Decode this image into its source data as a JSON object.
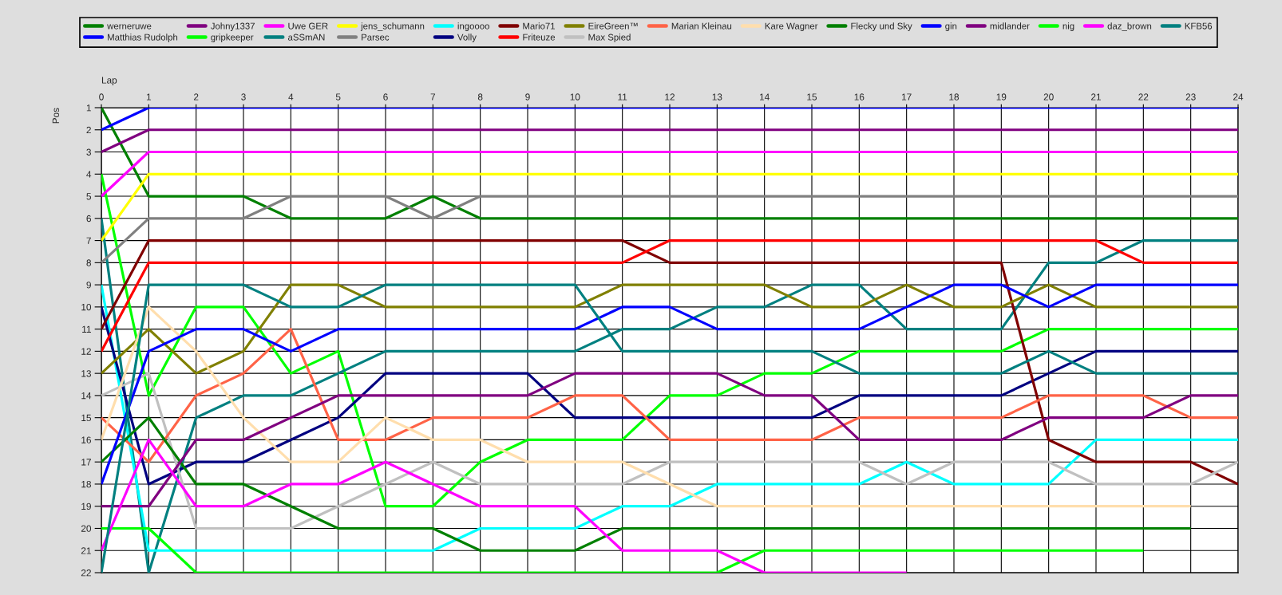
{
  "chart_data": {
    "type": "line",
    "xlabel": "Lap",
    "ylabel": "Pos",
    "grid": true,
    "legend": "top",
    "x": [
      0,
      1,
      2,
      3,
      4,
      5,
      6,
      7,
      8,
      9,
      10,
      11,
      12,
      13,
      14,
      15,
      16,
      17,
      18,
      19,
      20,
      21,
      22,
      23,
      24
    ],
    "xlim": [
      0,
      24
    ],
    "xticks": [
      0,
      1,
      2,
      3,
      4,
      5,
      6,
      7,
      8,
      9,
      10,
      11,
      12,
      13,
      14,
      15,
      16,
      17,
      18,
      19,
      20,
      21,
      22,
      23,
      24
    ],
    "ylim": [
      22,
      1
    ],
    "yticks": [
      1,
      2,
      3,
      4,
      5,
      6,
      7,
      8,
      9,
      10,
      11,
      12,
      13,
      14,
      15,
      16,
      17,
      18,
      19,
      20,
      21,
      22
    ],
    "series": [
      {
        "name": "werneruwe",
        "color": "#008000",
        "values": [
          1,
          5,
          5,
          5,
          6,
          6,
          6,
          5,
          6,
          6,
          6,
          6,
          6,
          6,
          6,
          6,
          6,
          6,
          6,
          6,
          6,
          6,
          6,
          6,
          6
        ]
      },
      {
        "name": "Matthias Rudolph",
        "color": "#0000ff",
        "values": [
          2,
          1,
          1,
          1,
          1,
          1,
          1,
          1,
          1,
          1,
          1,
          1,
          1,
          1,
          1,
          1,
          1,
          1,
          1,
          1,
          1,
          1,
          1,
          1,
          1
        ]
      },
      {
        "name": "Johny1337",
        "color": "#800080",
        "values": [
          3,
          2,
          2,
          2,
          2,
          2,
          2,
          2,
          2,
          2,
          2,
          2,
          2,
          2,
          2,
          2,
          2,
          2,
          2,
          2,
          2,
          2,
          2,
          2,
          2
        ]
      },
      {
        "name": "gripkeeper",
        "color": "#00ff00",
        "values": [
          4,
          14,
          10,
          10,
          13,
          12,
          19,
          19,
          17,
          16,
          16,
          16,
          14,
          14,
          13,
          13,
          12,
          12,
          12,
          12,
          11,
          11,
          11,
          11,
          11
        ]
      },
      {
        "name": "Uwe GER",
        "color": "#ff00ff",
        "values": [
          5,
          3,
          3,
          3,
          3,
          3,
          3,
          3,
          3,
          3,
          3,
          3,
          3,
          3,
          3,
          3,
          3,
          3,
          3,
          3,
          3,
          3,
          3,
          3,
          3
        ]
      },
      {
        "name": "aSSmAN",
        "color": "#008080",
        "values": [
          6,
          22,
          15,
          14,
          14,
          13,
          12,
          12,
          12,
          12,
          12,
          11,
          11,
          10,
          10,
          9,
          9,
          11,
          11,
          11,
          8,
          8,
          7,
          7,
          7
        ]
      },
      {
        "name": "jens_schumann",
        "color": "#ffff00",
        "values": [
          7,
          4,
          4,
          4,
          4,
          4,
          4,
          4,
          4,
          4,
          4,
          4,
          4,
          4,
          4,
          4,
          4,
          4,
          4,
          4,
          4,
          4,
          4,
          4,
          4
        ]
      },
      {
        "name": "Parsec",
        "color": "#808080",
        "values": [
          8,
          6,
          6,
          6,
          5,
          5,
          5,
          6,
          5,
          5,
          5,
          5,
          5,
          5,
          5,
          5,
          5,
          5,
          5,
          5,
          5,
          5,
          5,
          5,
          5
        ]
      },
      {
        "name": "ingoooo",
        "color": "#00ffff",
        "values": [
          9,
          21,
          21,
          21,
          21,
          21,
          21,
          21,
          20,
          20,
          20,
          19,
          19,
          18,
          18,
          18,
          18,
          17,
          18,
          18,
          18,
          16,
          16,
          16,
          16
        ]
      },
      {
        "name": "Volly",
        "color": "#000080",
        "values": [
          10,
          18,
          17,
          17,
          16,
          15,
          13,
          13,
          13,
          13,
          15,
          15,
          15,
          15,
          15,
          15,
          14,
          14,
          14,
          14,
          13,
          12,
          12,
          12,
          12
        ]
      },
      {
        "name": "Mario71",
        "color": "#800000",
        "values": [
          11,
          7,
          7,
          7,
          7,
          7,
          7,
          7,
          7,
          7,
          7,
          7,
          8,
          8,
          8,
          8,
          8,
          8,
          8,
          8,
          16,
          17,
          17,
          17,
          18
        ]
      },
      {
        "name": "Friteuze",
        "color": "#ff0000",
        "values": [
          12,
          8,
          8,
          8,
          8,
          8,
          8,
          8,
          8,
          8,
          8,
          8,
          7,
          7,
          7,
          7,
          7,
          7,
          7,
          7,
          7,
          7,
          8,
          8,
          8
        ]
      },
      {
        "name": "EireGreen™",
        "color": "#808000",
        "values": [
          13,
          11,
          13,
          12,
          9,
          9,
          10,
          10,
          10,
          10,
          10,
          9,
          9,
          9,
          9,
          10,
          10,
          9,
          10,
          10,
          9,
          10,
          10,
          10,
          10
        ]
      },
      {
        "name": "Max Spied",
        "color": "#c0c0c0",
        "values": [
          14,
          13,
          20,
          20,
          20,
          19,
          18,
          17,
          18,
          18,
          18,
          18,
          17,
          17,
          17,
          17,
          17,
          18,
          17,
          17,
          17,
          18,
          18,
          18,
          17
        ]
      },
      {
        "name": "Marian Kleinau",
        "color": "#ff6347",
        "values": [
          15,
          17,
          14,
          13,
          11,
          16,
          16,
          15,
          15,
          15,
          14,
          14,
          16,
          16,
          16,
          16,
          15,
          15,
          15,
          15,
          14,
          14,
          14,
          15,
          15
        ]
      },
      {
        "name": "Kare Wagner",
        "color": "#ffdead",
        "values": [
          16,
          10,
          12,
          15,
          17,
          17,
          15,
          16,
          16,
          17,
          17,
          17,
          18,
          19,
          19,
          19,
          19,
          19,
          19,
          19,
          19,
          19,
          19,
          19,
          null
        ]
      },
      {
        "name": "Flecky und Sky",
        "color": "#008000",
        "values": [
          17,
          15,
          18,
          18,
          19,
          20,
          20,
          20,
          21,
          21,
          21,
          20,
          20,
          20,
          20,
          20,
          20,
          20,
          20,
          20,
          20,
          20,
          20,
          20,
          null
        ]
      },
      {
        "name": "gin",
        "color": "#0000ff",
        "values": [
          18,
          12,
          11,
          11,
          12,
          11,
          11,
          11,
          11,
          11,
          11,
          10,
          10,
          11,
          11,
          11,
          11,
          10,
          9,
          9,
          10,
          9,
          9,
          9,
          9
        ]
      },
      {
        "name": "midlander",
        "color": "#800080",
        "values": [
          19,
          19,
          16,
          16,
          15,
          14,
          14,
          14,
          14,
          14,
          13,
          13,
          13,
          13,
          14,
          14,
          16,
          16,
          16,
          16,
          15,
          15,
          15,
          14,
          14
        ]
      },
      {
        "name": "nig",
        "color": "#00ff00",
        "values": [
          20,
          20,
          22,
          22,
          22,
          22,
          22,
          22,
          22,
          22,
          22,
          22,
          22,
          22,
          21,
          21,
          21,
          21,
          21,
          21,
          21,
          21,
          21,
          null,
          null
        ]
      },
      {
        "name": "daz_brown",
        "color": "#ff00ff",
        "values": [
          21,
          16,
          19,
          19,
          18,
          18,
          17,
          18,
          19,
          19,
          19,
          21,
          21,
          21,
          22,
          22,
          22,
          22,
          null,
          null,
          null,
          null,
          null,
          null,
          null
        ]
      },
      {
        "name": "KFB56",
        "color": "#008080",
        "values": [
          22,
          9,
          9,
          9,
          10,
          10,
          9,
          9,
          9,
          9,
          9,
          12,
          12,
          12,
          12,
          12,
          13,
          13,
          13,
          13,
          12,
          13,
          13,
          13,
          13
        ]
      }
    ]
  }
}
